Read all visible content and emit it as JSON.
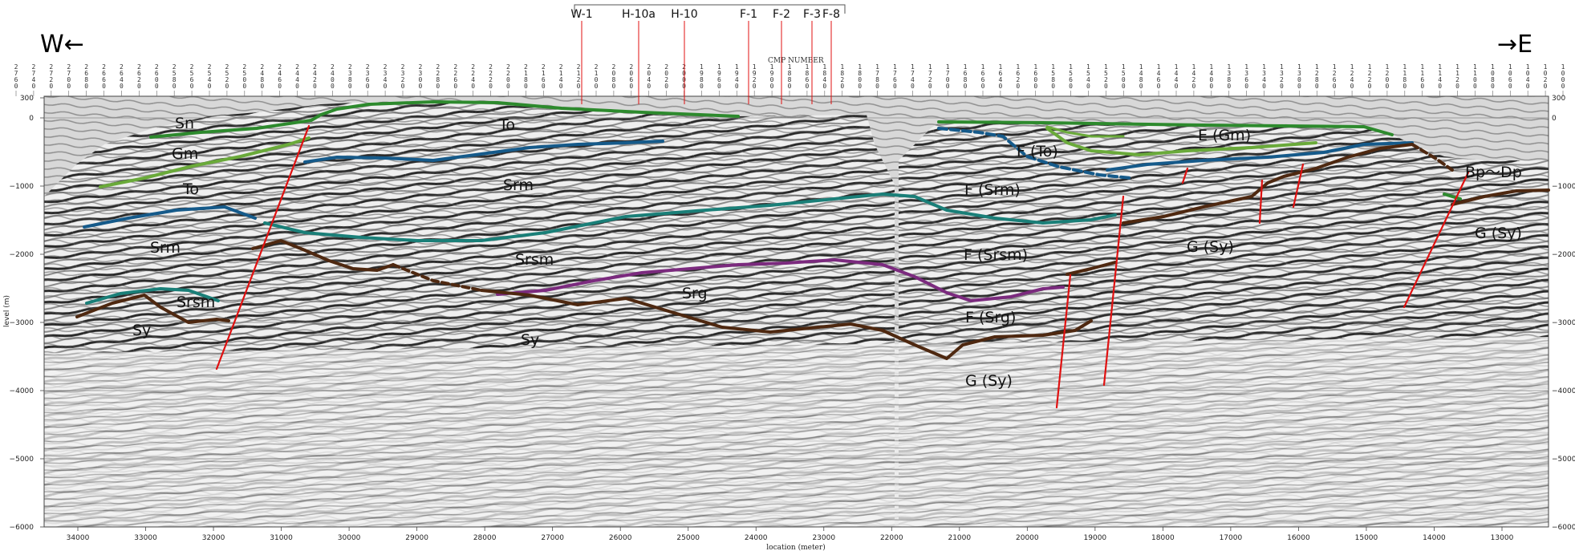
{
  "directions": {
    "west": "W←",
    "east": "→E"
  },
  "wells": [
    "W-1",
    "H-10a",
    "H-10",
    "F-1",
    "F-2",
    "F-3",
    "F-8"
  ],
  "cmp_label": "CMP NUMBER",
  "cmp_numbers": [
    "2760",
    "2740",
    "2720",
    "2700",
    "2680",
    "2660",
    "2640",
    "2620",
    "2600",
    "2580",
    "2560",
    "2540",
    "2520",
    "2500",
    "2480",
    "2460",
    "2440",
    "2420",
    "2400",
    "2380",
    "2360",
    "2340",
    "2320",
    "2300",
    "2280",
    "2260",
    "2240",
    "2220",
    "2200",
    "2180",
    "2160",
    "2140",
    "2120",
    "2100",
    "2080",
    "2060",
    "2040",
    "2020",
    "2000",
    "1980",
    "1960",
    "1940",
    "1920",
    "1900",
    "1880",
    "1860",
    "1840",
    "1820",
    "1800",
    "1780",
    "1760",
    "1740",
    "1720",
    "1700",
    "1680",
    "1660",
    "1640",
    "1620",
    "1600",
    "1580",
    "1560",
    "1540",
    "1520",
    "1500",
    "1480",
    "1460",
    "1440",
    "1420",
    "1400",
    "1380",
    "1360",
    "1340",
    "1320",
    "1300",
    "1280",
    "1260",
    "1240",
    "1220",
    "1200",
    "1180",
    "1160",
    "1140",
    "1120",
    "1100",
    "1080",
    "1060",
    "1040",
    "1020",
    "1000"
  ],
  "x_axis": {
    "label": "location (meter)",
    "ticks": [
      "34000",
      "33000",
      "32000",
      "31000",
      "30000",
      "29000",
      "28000",
      "27000",
      "26000",
      "25000",
      "24000",
      "23000",
      "22000",
      "21000",
      "20000",
      "19000",
      "18000",
      "17000",
      "16000",
      "15000",
      "14000",
      "13000"
    ]
  },
  "y_axis": {
    "label": "level (m)",
    "ticks": [
      "300",
      "0",
      "−1000",
      "−2000",
      "−3000",
      "−4000",
      "−5000",
      "−6000"
    ]
  },
  "units": [
    {
      "text": "Sn"
    },
    {
      "text": "Gm"
    },
    {
      "text": "To"
    },
    {
      "text": "Srm"
    },
    {
      "text": "Srsm"
    },
    {
      "text": "Sy"
    },
    {
      "text": "To"
    },
    {
      "text": "Srm"
    },
    {
      "text": "Srsm"
    },
    {
      "text": "Srg"
    },
    {
      "text": "Sy"
    },
    {
      "text": "E (Gm)"
    },
    {
      "text": "F (To)"
    },
    {
      "text": "F (Srm)"
    },
    {
      "text": "F (Srsm)"
    },
    {
      "text": "F (Srg)"
    },
    {
      "text": "G (Sy)"
    },
    {
      "text": "G (Sy)"
    },
    {
      "text": "Bp～Dp"
    },
    {
      "text": "G (Sy)"
    }
  ],
  "colors": {
    "sn": "#2d8a2d",
    "gm": "#6aaa3a",
    "to": "#155a8a",
    "srsm": "#1a7f78",
    "srg": "#7b2a7e",
    "sy": "#4e2810",
    "fault": "#e01010",
    "background": "#d6d6d6"
  }
}
